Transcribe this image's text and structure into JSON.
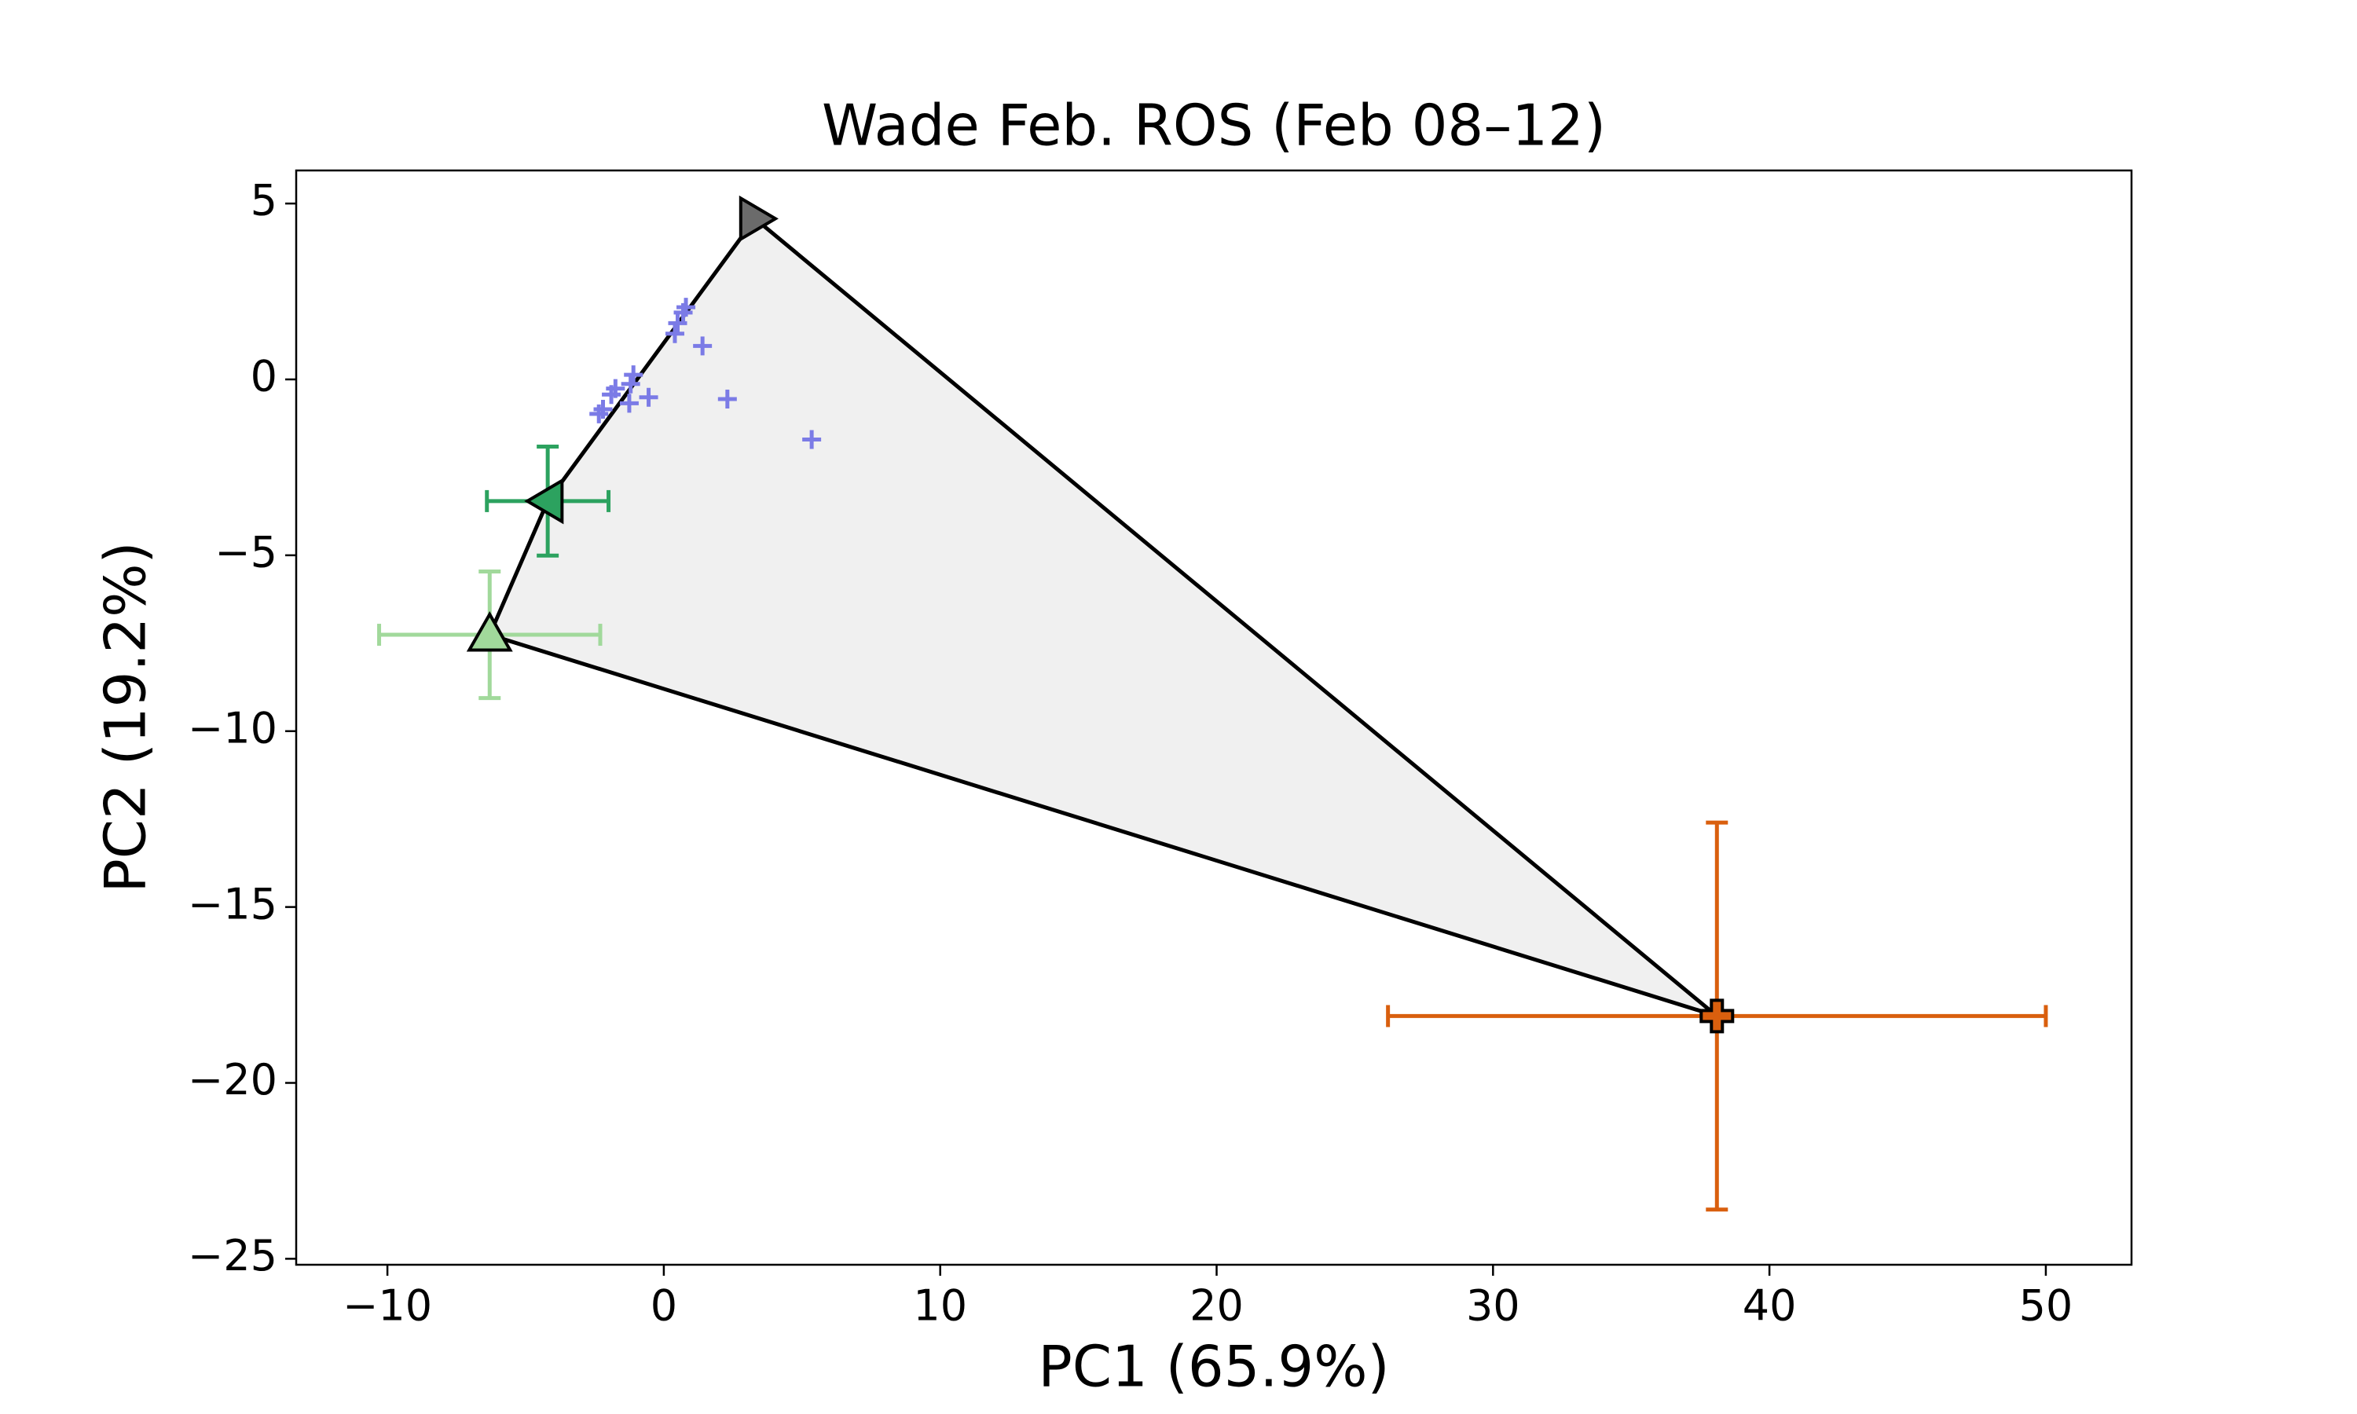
{
  "chart_data": {
    "type": "scatter",
    "title": "Wade Feb. ROS (Feb 08–12)",
    "xlabel": "PC1 (65.9%)",
    "ylabel": "PC2 (19.2%)",
    "xlim": [
      -13.3,
      53.1
    ],
    "ylim": [
      -25.17,
      5.94
    ],
    "xticks": [
      {
        "value": -10,
        "label": "−10"
      },
      0,
      10,
      20,
      30,
      40,
      50
    ],
    "yticks": [
      {
        "value": -25,
        "label": "−25"
      },
      {
        "value": -20,
        "label": "−20"
      },
      {
        "value": -15,
        "label": "−15"
      },
      {
        "value": -10,
        "label": "−10"
      },
      {
        "value": -5,
        "label": "−5"
      },
      0,
      5
    ],
    "polygon_fill": "#f0f0f0",
    "series": [
      {
        "color": "#7b7be6",
        "marker": "plus",
        "x": [
          0.8,
          0.7,
          0.5,
          0.4,
          1.4,
          -1.1,
          -1.2,
          -1.75,
          -1.9,
          -0.55,
          -1.25,
          -2.2,
          -2.35,
          2.3,
          5.35
        ],
        "y": [
          2.05,
          1.9,
          1.6,
          1.3,
          0.95,
          0.13,
          -0.13,
          -0.26,
          -0.43,
          -0.51,
          -0.68,
          -0.85,
          -0.98,
          -0.56,
          -1.71
        ]
      },
      {
        "color": "#6b6b6b",
        "marker": "triangle-right",
        "edgecolor": "#000000",
        "x": [
          3.3
        ],
        "y": [
          4.57
        ]
      },
      {
        "color": "#2ca25f",
        "marker": "triangle-left",
        "edgecolor": "#000000",
        "x": [
          -4.2
        ],
        "y": [
          -3.46
        ],
        "xerr": [
          2.2
        ],
        "yerr": [
          1.55
        ]
      },
      {
        "color": "#a1d99b",
        "marker": "triangle-up",
        "edgecolor": "#000000",
        "x": [
          -6.3
        ],
        "y": [
          -7.26
        ],
        "xerr": [
          4.0
        ],
        "yerr": [
          1.8
        ]
      },
      {
        "color": "#d95f0e",
        "marker": "plus-filled",
        "edgecolor": "#000000",
        "x": [
          38.1
        ],
        "y": [
          -18.1
        ],
        "xerr": [
          11.9
        ],
        "yerr": [
          5.5
        ]
      }
    ]
  }
}
